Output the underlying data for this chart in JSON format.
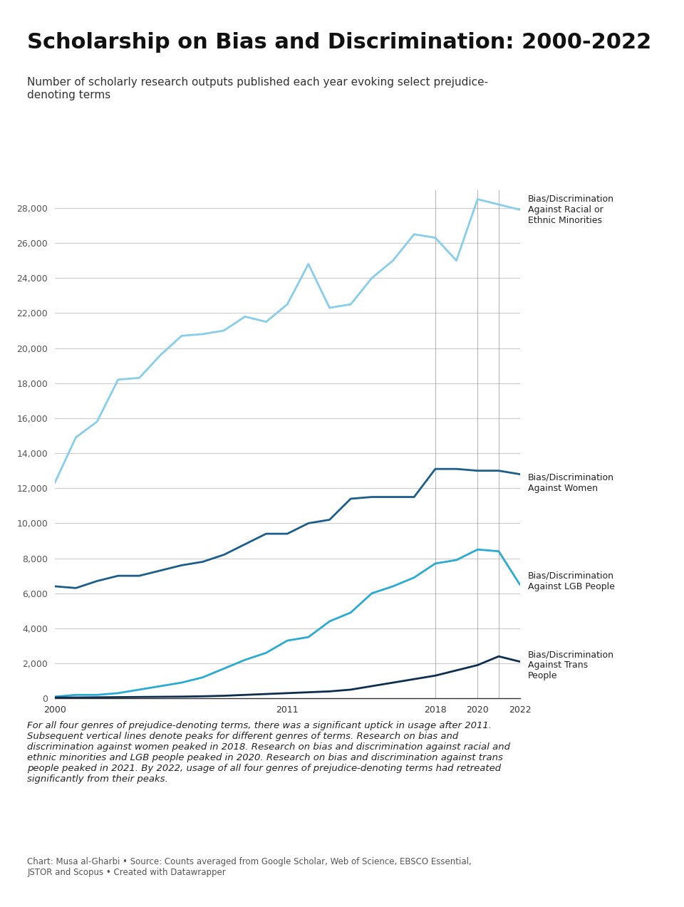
{
  "title": "Scholarship on Bias and Discrimination: 2000-2022",
  "subtitle": "Number of scholarly research outputs published each year evoking select prejudice-\ndenoting terms",
  "footnote": "For all four genres of prejudice-denoting terms, there was a significant uptick in usage after 2011.\nSubsequent vertical lines denote peaks for different genres of terms. Research on bias and\ndiscrimination against women peaked in 2018. Research on bias and discrimination against racial and\nethnic minorities and LGB people peaked in 2020. Research on bias and discrimination against trans\npeople peaked in 2021. By 2022, usage of all four genres of prejudice-denoting terms had retreated\nsignificantly from their peaks.",
  "source": "Chart: Musa al-Gharbi • Source: Counts averaged from Google Scholar, Web of Science, EBSCO Essential,\nJSTOR and Scopus • Created with Datawrapper",
  "years": [
    2000,
    2001,
    2002,
    2003,
    2004,
    2005,
    2006,
    2007,
    2008,
    2009,
    2010,
    2011,
    2012,
    2013,
    2014,
    2015,
    2016,
    2017,
    2018,
    2019,
    2020,
    2021,
    2022
  ],
  "racial": [
    12300,
    14900,
    15800,
    18200,
    18300,
    19600,
    20700,
    20800,
    21000,
    21800,
    21500,
    22500,
    24800,
    22300,
    22500,
    24000,
    25000,
    26500,
    26300,
    25000,
    28500,
    28200,
    27900
  ],
  "women": [
    6400,
    6300,
    6700,
    7000,
    7000,
    7300,
    7600,
    7800,
    8200,
    8800,
    9400,
    9400,
    10000,
    10200,
    11400,
    11500,
    11500,
    11500,
    13100,
    13100,
    13000,
    13000,
    12800
  ],
  "lgb": [
    100,
    200,
    200,
    300,
    500,
    700,
    900,
    1200,
    1700,
    2200,
    2600,
    3300,
    3500,
    4400,
    4900,
    6000,
    6400,
    6900,
    7700,
    7900,
    8500,
    8400,
    6500
  ],
  "trans": [
    50,
    50,
    60,
    70,
    80,
    90,
    100,
    120,
    150,
    200,
    250,
    300,
    350,
    400,
    500,
    700,
    900,
    1100,
    1300,
    1600,
    1900,
    2400,
    2100
  ],
  "color_racial": "#87CEEB",
  "color_women": "#1B5E8A",
  "color_lgb": "#29ABD4",
  "color_trans": "#0D2E4E",
  "ylim": [
    0,
    29000
  ],
  "yticks": [
    0,
    2000,
    4000,
    6000,
    8000,
    10000,
    12000,
    14000,
    16000,
    18000,
    20000,
    22000,
    24000,
    26000,
    28000
  ],
  "xtick_labels": [
    "2000",
    "",
    "",
    "",
    "",
    "",
    "",
    "",
    "",
    "",
    "",
    "2011",
    "",
    "",
    "",
    "",
    "",
    "",
    "2018",
    "",
    "2020",
    "",
    "2022"
  ],
  "vline_years": [
    2018,
    2020,
    2021
  ],
  "background_color": "#ffffff",
  "grid_color": "#cccccc",
  "label_racial": "Bias/Discrimination\nAgainst Racial or\nEthnic Minorities",
  "label_women": "Bias/Discrimination\nAgainst Women",
  "label_lgb": "Bias/Discrimination\nAgainst LGB People",
  "label_trans": "Bias/Discrimination\nAgainst Trans\nPeople"
}
